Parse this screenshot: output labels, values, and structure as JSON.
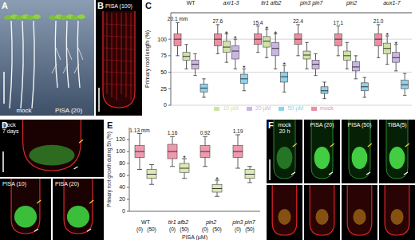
{
  "chart_data": [
    {
      "panel": "C",
      "type": "box",
      "y_label": "Primary root length (%)",
      "categories": [
        "WT",
        "axr1-3",
        "tir1 afb2",
        "pin3 pin7",
        "pin2",
        "aux1-7"
      ],
      "annotations": [
        "20.1 mm",
        "27.6",
        "15.4",
        "22.4",
        "17.1",
        "21.0"
      ],
      "significance_label": "*",
      "ylim": [
        0,
        140
      ],
      "yticks": [
        0,
        25,
        50,
        75,
        100
      ],
      "grid": true,
      "legend": "bottom",
      "series": [
        {
          "name": "mock",
          "color": "#ea8fa3",
          "whisker_low": [
            75,
            78,
            80,
            75,
            75,
            72
          ],
          "q1": [
            90,
            90,
            92,
            92,
            90,
            90
          ],
          "median": [
            100,
            100,
            100,
            100,
            100,
            100
          ],
          "q3": [
            108,
            108,
            108,
            108,
            108,
            108
          ],
          "whisker_high": [
            125,
            122,
            120,
            122,
            120,
            122
          ],
          "significant": [
            false,
            false,
            false,
            false,
            false,
            false
          ]
        },
        {
          "name": "10 µM",
          "color": "#cfe3a6",
          "whisker_low": [
            55,
            65,
            72,
            55,
            55,
            62
          ],
          "q1": [
            68,
            80,
            88,
            70,
            68,
            78
          ],
          "median": [
            74,
            88,
            97,
            76,
            75,
            86
          ],
          "q3": [
            80,
            97,
            104,
            82,
            82,
            94
          ],
          "whisker_high": [
            92,
            108,
            115,
            95,
            95,
            105
          ],
          "significant": [
            false,
            true,
            true,
            false,
            false,
            true
          ]
        },
        {
          "name": "20 µM",
          "color": "#c9b6e2",
          "whisker_low": [
            45,
            55,
            55,
            45,
            40,
            52
          ],
          "q1": [
            55,
            70,
            75,
            55,
            52,
            65
          ],
          "median": [
            62,
            82,
            86,
            62,
            58,
            72
          ],
          "q3": [
            68,
            90,
            95,
            68,
            66,
            80
          ],
          "whisker_high": [
            78,
            100,
            108,
            78,
            75,
            92
          ],
          "significant": [
            false,
            true,
            true,
            false,
            false,
            true
          ]
        },
        {
          "name": "50 µM",
          "color": "#8fd2ea",
          "whisker_low": [
            12,
            22,
            20,
            10,
            12,
            15
          ],
          "q1": [
            20,
            33,
            35,
            18,
            22,
            25
          ],
          "median": [
            26,
            40,
            43,
            22,
            28,
            31
          ],
          "q3": [
            32,
            47,
            50,
            28,
            34,
            38
          ],
          "whisker_high": [
            40,
            55,
            60,
            35,
            42,
            48
          ],
          "significant": [
            false,
            true,
            true,
            false,
            false,
            false
          ]
        }
      ]
    },
    {
      "panel": "E",
      "type": "box",
      "y_label": "Primary root growth during 5h (%)",
      "x_label": "PISA (µM)",
      "categories": [
        "WT",
        "tir1 afb2",
        "pin2",
        "pin3 pin7"
      ],
      "annotations": [
        "1.13 mm",
        "1.16",
        "0.92",
        "1.19"
      ],
      "significance_label": "*",
      "ylim": [
        0,
        140
      ],
      "yticks": [
        0,
        20,
        40,
        60,
        80,
        100,
        120
      ],
      "grid": false,
      "series": [
        {
          "name": "(0)",
          "color": "#ee9aae",
          "whisker_low": [
            70,
            75,
            75,
            72
          ],
          "q1": [
            90,
            88,
            90,
            90
          ],
          "median": [
            100,
            100,
            100,
            100
          ],
          "q3": [
            110,
            112,
            110,
            110
          ],
          "whisker_high": [
            130,
            125,
            125,
            128
          ],
          "significant": [
            false,
            false,
            false,
            false
          ]
        },
        {
          "name": "(50)",
          "color": "#dbe9b4",
          "whisker_low": [
            45,
            55,
            25,
            48
          ],
          "q1": [
            55,
            65,
            32,
            55
          ],
          "median": [
            62,
            72,
            38,
            62
          ],
          "q3": [
            70,
            80,
            45,
            70
          ],
          "whisker_high": [
            78,
            88,
            52,
            75
          ],
          "significant": [
            false,
            true,
            true,
            false
          ]
        }
      ]
    }
  ],
  "images": [
    {
      "panel": "A",
      "labels": [
        [
          "mock"
        ],
        [
          "PISA (20)"
        ]
      ]
    },
    {
      "panel": "B",
      "labels": [
        [
          "PISA (100)"
        ]
      ]
    },
    {
      "panel": "D",
      "labels": [
        [
          "mock",
          "7 days"
        ],
        [
          "PISA (10)"
        ],
        [
          "PISA (20)"
        ]
      ]
    },
    {
      "panel": "F",
      "labels": [
        [
          "mock",
          "20 h"
        ],
        [
          "PISA (20)"
        ],
        [
          "PISA (50)"
        ],
        [
          "TIBA(5)"
        ]
      ]
    }
  ]
}
